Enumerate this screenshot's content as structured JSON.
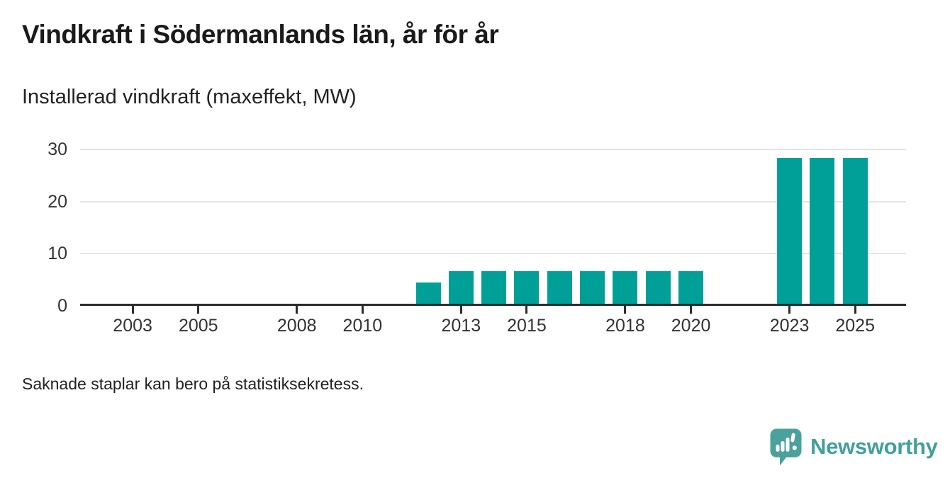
{
  "header": {
    "title": "Vindkraft i Södermanlands län, år för år",
    "subtitle": "Installerad vindkraft (maxeffekt, MW)"
  },
  "chart_data": {
    "type": "bar",
    "title": "Vindkraft i Södermanlands län, år för år",
    "subtitle": "Installerad vindkraft (maxeffekt, MW)",
    "ylabel": "Installerad vindkraft (maxeffekt, MW)",
    "unit": "MW",
    "points": [
      {
        "year": 2012,
        "value": 4.5
      },
      {
        "year": 2013,
        "value": 6.6
      },
      {
        "year": 2014,
        "value": 6.6
      },
      {
        "year": 2015,
        "value": 6.6
      },
      {
        "year": 2016,
        "value": 6.6
      },
      {
        "year": 2017,
        "value": 6.6
      },
      {
        "year": 2018,
        "value": 6.6
      },
      {
        "year": 2019,
        "value": 6.6
      },
      {
        "year": 2020,
        "value": 6.6
      },
      {
        "year": 2023,
        "value": 28.4
      },
      {
        "year": 2024,
        "value": 28.4
      },
      {
        "year": 2025,
        "value": 28.4
      }
    ],
    "x_tick_labels": [
      "2003",
      "2005",
      "2008",
      "2010",
      "2013",
      "2015",
      "2018",
      "2020",
      "2023",
      "2025"
    ],
    "y_ticks": [
      0,
      10,
      20,
      30
    ],
    "xlim": [
      2001.4,
      2026.55
    ],
    "ylim": [
      0,
      30
    ],
    "grid": true,
    "legend": "none",
    "bar_color": "#00a099",
    "axis_color": "#2d2d2d",
    "grid_color": "#e4e4e4"
  },
  "footer": {
    "note": "Saknade staplar kan bero på statistiksekretess."
  },
  "branding": {
    "logo_text": "Newsworthy",
    "logo_color": "#41a09b",
    "icon": "newsworthy-speech-bubble-chart-icon"
  }
}
